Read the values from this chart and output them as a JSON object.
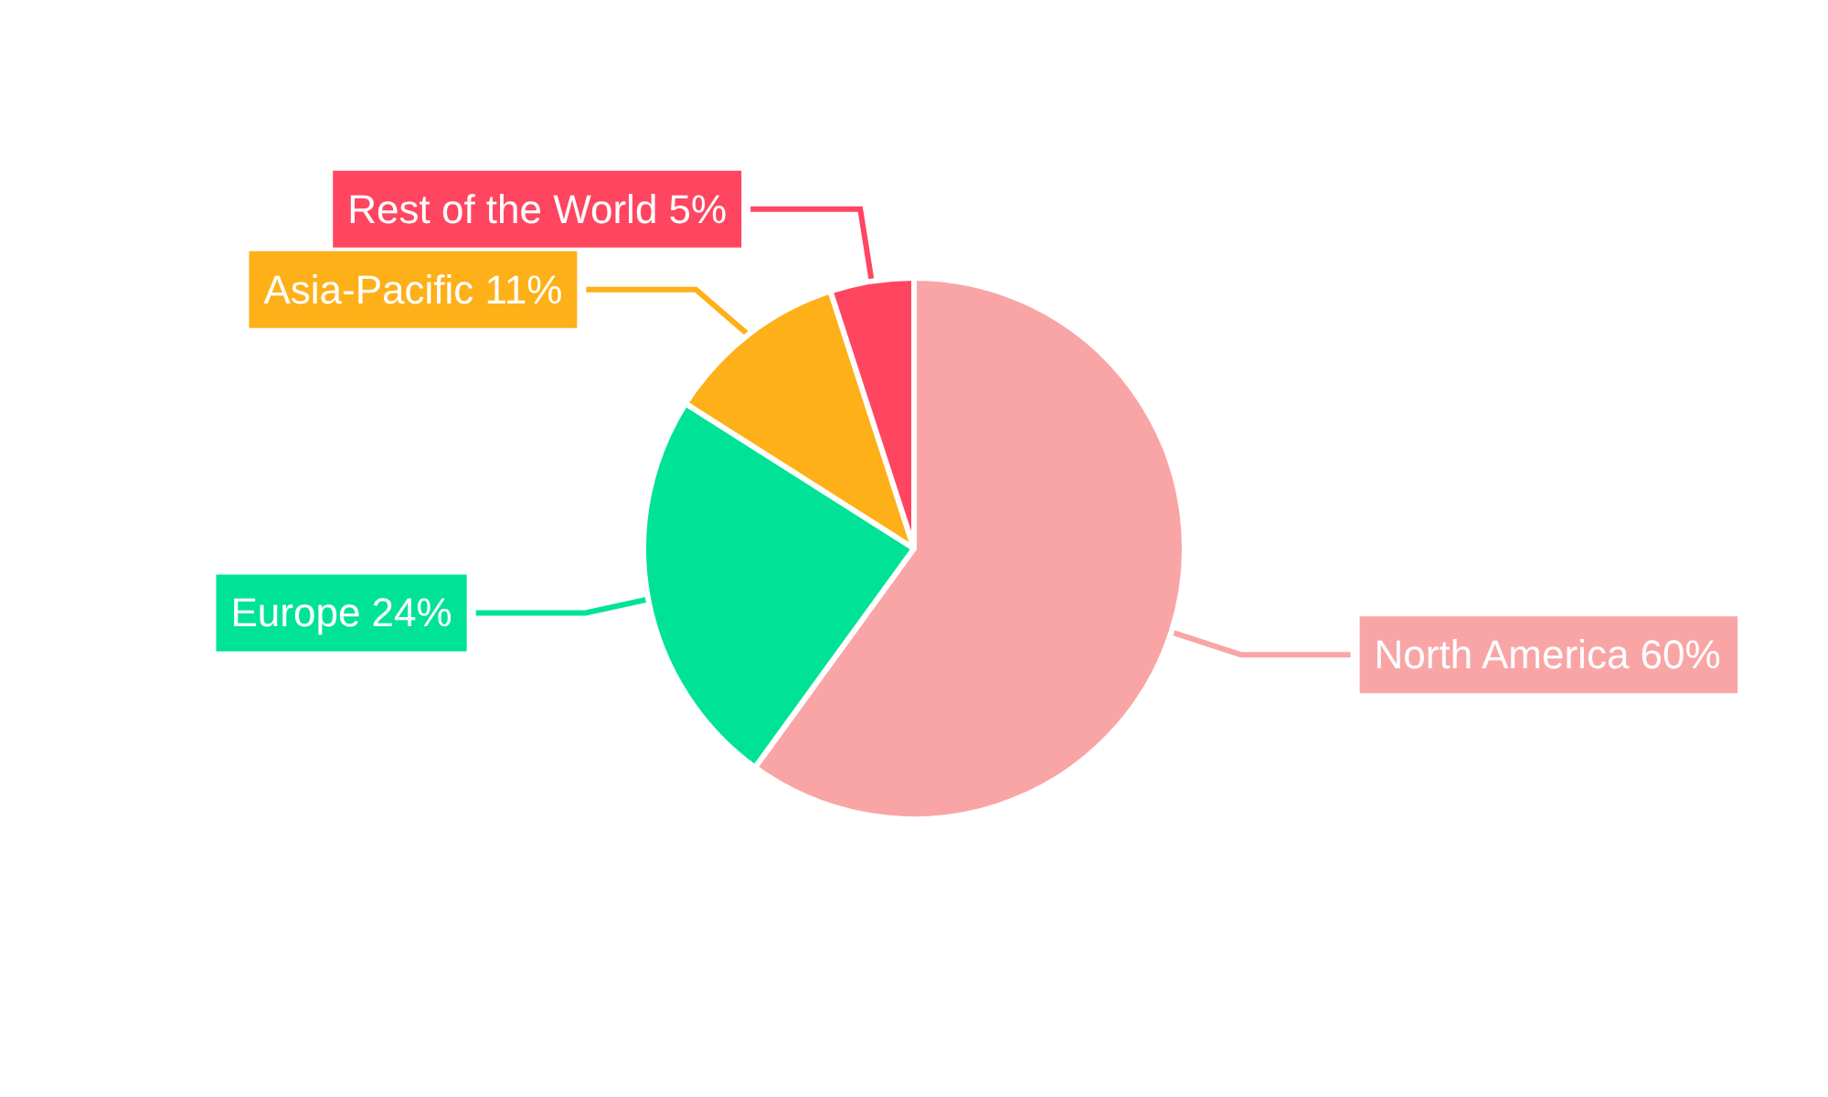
{
  "chart_data": {
    "type": "pie",
    "categories": [
      "North America",
      "Europe",
      "Asia-Pacific",
      "Rest of the World"
    ],
    "values": [
      60,
      24,
      11,
      5
    ],
    "value_labels": [
      "60%",
      "24%",
      "11%",
      "5%"
    ],
    "colors": [
      "#f9a5a6",
      "#00e396",
      "#feb019",
      "#ff4560"
    ],
    "legend": false
  }
}
